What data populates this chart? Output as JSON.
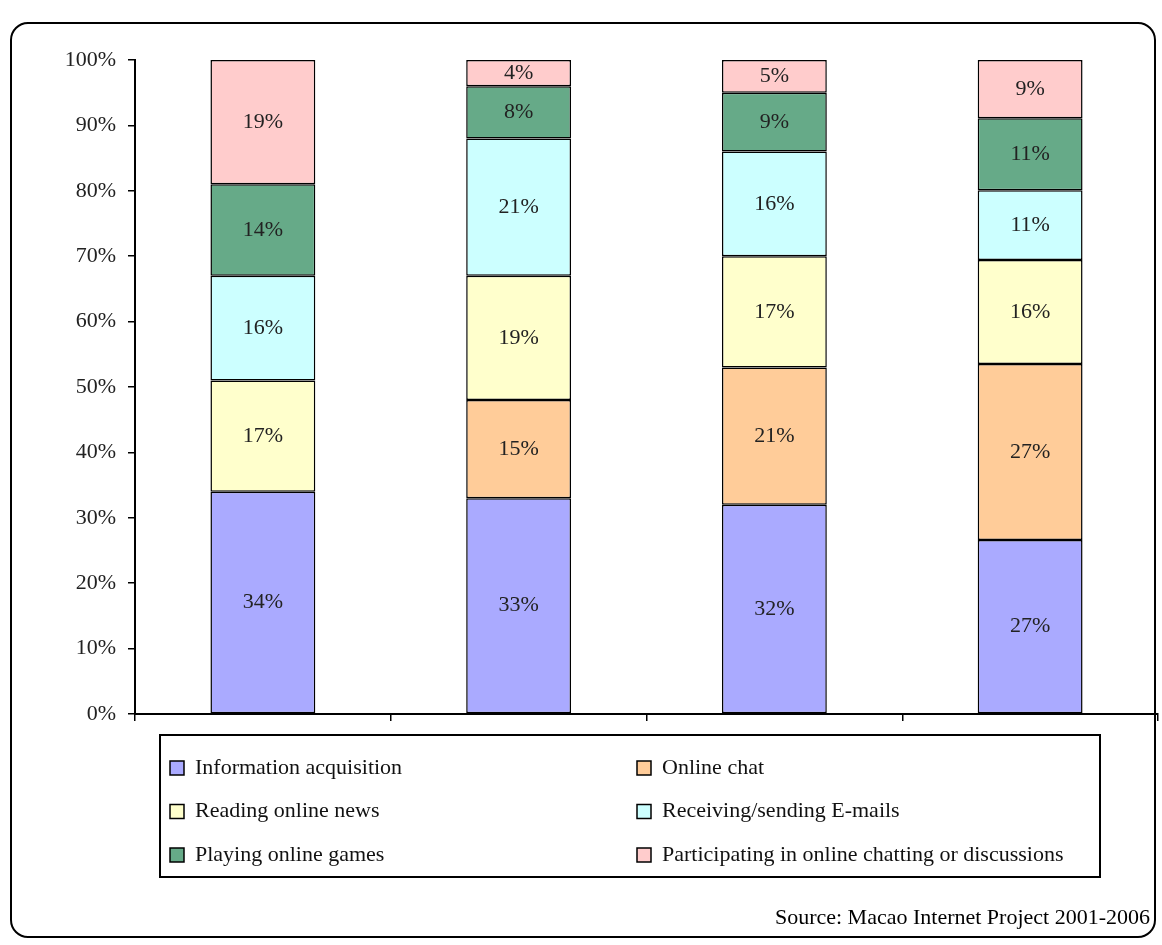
{
  "chart_data": {
    "type": "bar",
    "stacked": true,
    "categories": [
      null,
      null,
      null,
      null
    ],
    "series": [
      {
        "name": "Information acquisition",
        "color": "#aaaaff",
        "values": [
          34,
          33,
          32,
          26.6
        ],
        "value_labels": [
          "34%",
          "33%",
          "32%",
          "27%"
        ]
      },
      {
        "name": "Online chat",
        "color": "#ffcc99",
        "values": [
          null,
          15,
          21,
          26.9
        ],
        "value_labels": [
          null,
          "15%",
          "21%",
          "27%"
        ]
      },
      {
        "name": "Reading online news",
        "color": "#ffffcc",
        "values": [
          17,
          19,
          17,
          15.9
        ],
        "value_labels": [
          "17%",
          "19%",
          "17%",
          "16%"
        ]
      },
      {
        "name": "Receiving/sending E-mails",
        "color": "#ccffff",
        "values": [
          16,
          21,
          16,
          10.7
        ],
        "value_labels": [
          "16%",
          "21%",
          "16%",
          "11%"
        ]
      },
      {
        "name": "Playing online games",
        "color": "#66aa88",
        "values": [
          14,
          8,
          9,
          11
        ],
        "value_labels": [
          "14%",
          "8%",
          "9%",
          "11%"
        ]
      },
      {
        "name": "Participating in online chatting or discussions",
        "color": "#ffcccc",
        "values": [
          19,
          4,
          5,
          8.9
        ],
        "value_labels": [
          "19%",
          "4%",
          "5%",
          "9%"
        ]
      }
    ],
    "ylim": [
      0,
      100
    ],
    "yticks": [
      {
        "value": 0,
        "label": "0%"
      },
      {
        "value": 10,
        "label": "10%"
      },
      {
        "value": 20,
        "label": "20%"
      },
      {
        "value": 30,
        "label": "30%"
      },
      {
        "value": 40,
        "label": "40%"
      },
      {
        "value": 50,
        "label": "50%"
      },
      {
        "value": 60,
        "label": "60%"
      },
      {
        "value": 70,
        "label": "70%"
      },
      {
        "value": 80,
        "label": "80%"
      },
      {
        "value": 90,
        "label": "90%"
      },
      {
        "value": 100,
        "label": "100%"
      }
    ],
    "grid": false,
    "legend": "bottom",
    "annotations": [
      "Source: Macao Internet Project 2001-2006"
    ]
  }
}
